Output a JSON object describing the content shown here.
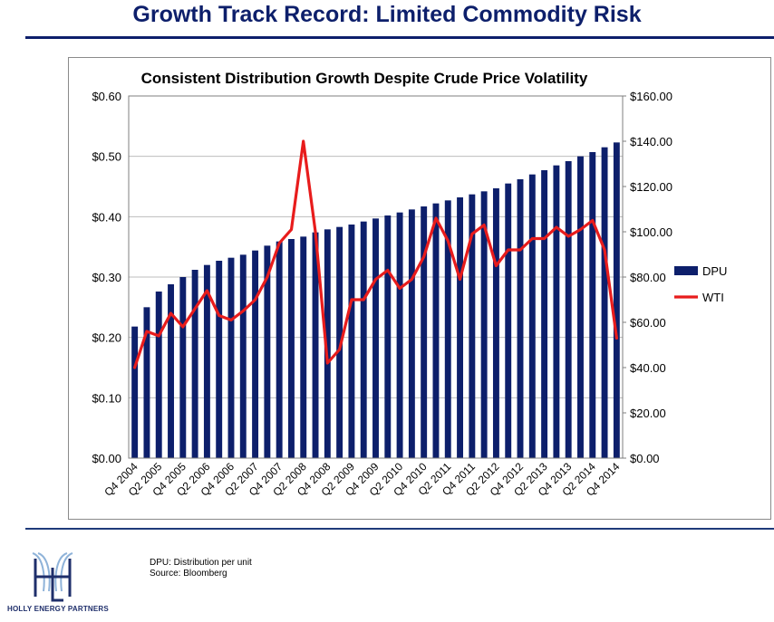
{
  "slide": {
    "title": "Growth Track Record:  Limited Commodity Risk"
  },
  "footnote": {
    "line1": "DPU:  Distribution per unit",
    "line2": "Source:  Bloomberg"
  },
  "logo": {
    "text": "HOLLY ENERGY PARTNERS"
  },
  "colors": {
    "title": "#0d1f6b",
    "bar": "#0d1f6b",
    "line": "#e81c1c",
    "rule": "#1f3a7a"
  },
  "chart_data": {
    "type": "bar",
    "title": "Consistent Distribution Growth Despite Crude Price Volatility",
    "categories": [
      "Q4 2004",
      "Q1 2005",
      "Q2 2005",
      "Q3 2005",
      "Q4 2005",
      "Q1 2006",
      "Q2 2006",
      "Q3 2006",
      "Q4 2006",
      "Q1 2007",
      "Q2 2007",
      "Q3 2007",
      "Q4 2007",
      "Q1 2008",
      "Q2 2008",
      "Q3 2008",
      "Q4 2008",
      "Q1 2009",
      "Q2 2009",
      "Q3 2009",
      "Q4 2009",
      "Q1 2010",
      "Q2 2010",
      "Q3 2010",
      "Q4 2010",
      "Q1 2011",
      "Q2 2011",
      "Q3 2011",
      "Q4 2011",
      "Q1 2012",
      "Q2 2012",
      "Q3 2012",
      "Q4 2012",
      "Q1 2013",
      "Q2 2013",
      "Q3 2013",
      "Q4 2013",
      "Q1 2014",
      "Q2 2014",
      "Q3 2014",
      "Q4 2014"
    ],
    "x_tick_labels": [
      "Q4 2004",
      "Q2 2005",
      "Q4 2005",
      "Q2 2006",
      "Q4 2006",
      "Q2 2007",
      "Q4 2007",
      "Q2 2008",
      "Q4 2008",
      "Q2 2009",
      "Q4 2009",
      "Q2 2010",
      "Q4 2010",
      "Q2 2011",
      "Q4 2011",
      "Q2 2012",
      "Q4 2012",
      "Q2 2013",
      "Q4 2013",
      "Q2 2014",
      "Q4 2014"
    ],
    "series": [
      {
        "name": "DPU",
        "type": "bar",
        "axis": "left",
        "values": [
          0.218,
          0.25,
          0.276,
          0.288,
          0.3,
          0.312,
          0.32,
          0.327,
          0.332,
          0.337,
          0.344,
          0.352,
          0.359,
          0.363,
          0.367,
          0.374,
          0.379,
          0.383,
          0.387,
          0.392,
          0.397,
          0.402,
          0.407,
          0.412,
          0.417,
          0.422,
          0.427,
          0.432,
          0.437,
          0.442,
          0.447,
          0.455,
          0.462,
          0.47,
          0.477,
          0.485,
          0.492,
          0.5,
          0.507,
          0.515,
          0.523
        ]
      },
      {
        "name": "WTI",
        "type": "line",
        "axis": "right",
        "values": [
          40,
          56,
          54,
          64,
          58,
          66,
          74,
          63,
          61,
          65,
          70,
          80,
          95,
          101,
          140,
          100,
          42,
          48,
          70,
          70,
          79,
          83,
          75,
          79,
          89,
          106,
          96,
          79,
          99,
          103,
          85,
          92,
          92,
          97,
          97,
          102,
          98,
          101,
          105,
          92,
          53
        ]
      }
    ],
    "y_left": {
      "ticks": [
        "$0.00",
        "$0.10",
        "$0.20",
        "$0.30",
        "$0.40",
        "$0.50",
        "$0.60"
      ],
      "range": [
        0,
        0.6
      ]
    },
    "y_right": {
      "ticks": [
        "$0.00",
        "$20.00",
        "$40.00",
        "$60.00",
        "$80.00",
        "$100.00",
        "$120.00",
        "$140.00",
        "$160.00"
      ],
      "range": [
        0,
        160
      ]
    },
    "grid": true,
    "legend_position": "right"
  }
}
